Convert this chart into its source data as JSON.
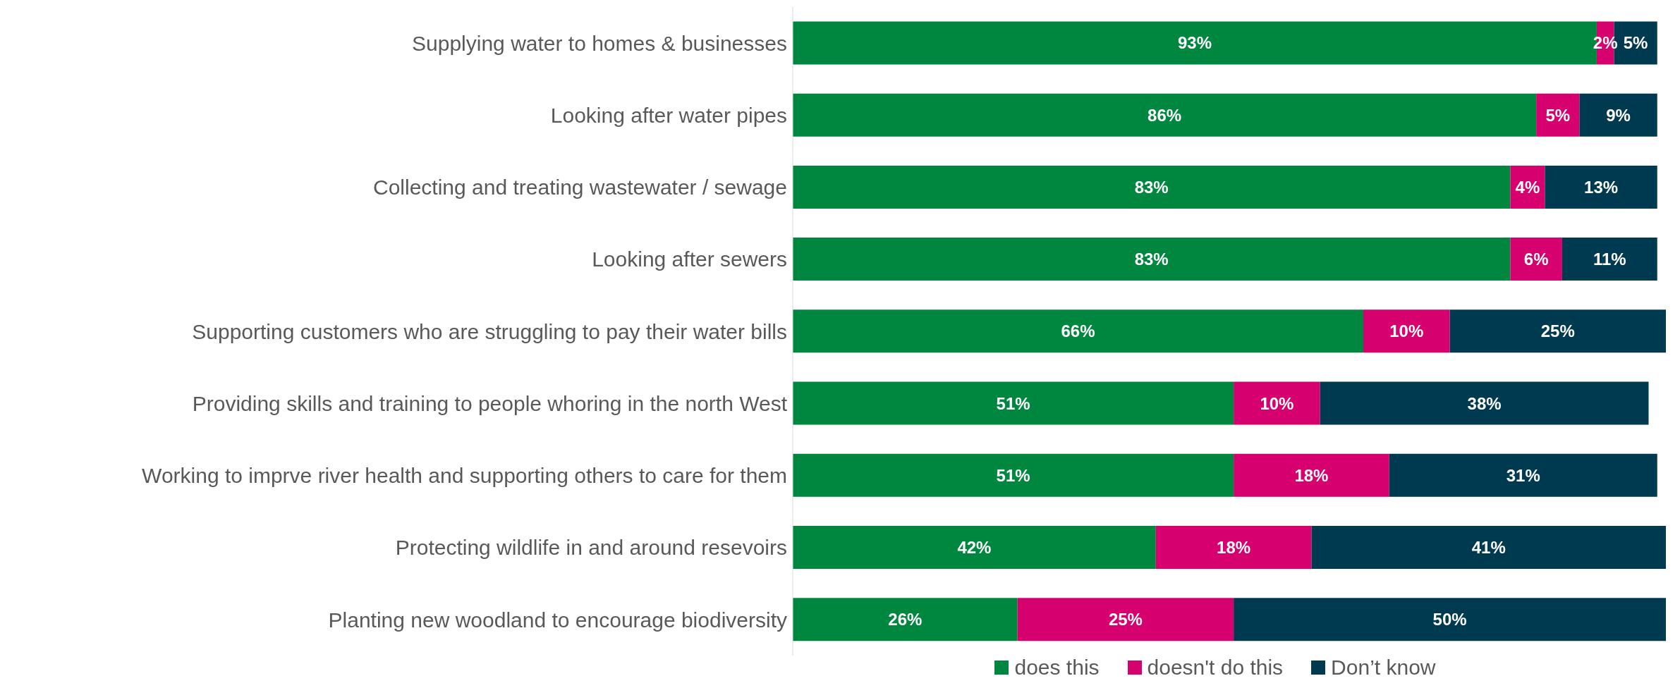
{
  "chart_data": {
    "type": "bar",
    "orientation": "horizontal",
    "stacked": true,
    "legend": "bottom",
    "categories": [
      "Supplying water to homes & businesses",
      "Looking after water pipes",
      "Collecting and treating wastewater / sewage",
      "Looking after sewers",
      "Supporting customers who are struggling to pay their water bills",
      "Providing skills and training to people whoring in the north West",
      "Working to imprve river health and supporting others to care for them",
      "Protecting wildlife in and around resevoirs",
      "Planting new woodland to encourage biodiversity"
    ],
    "series": [
      {
        "name": "does this",
        "color": "#00873f",
        "values": [
          93,
          86,
          83,
          83,
          66,
          51,
          51,
          42,
          26
        ],
        "value_labels": [
          "93%",
          "86%",
          "83%",
          "83%",
          "66%",
          "51%",
          "51%",
          "42%",
          "26%"
        ]
      },
      {
        "name": "doesn't do this",
        "color": "#d6006f",
        "values": [
          2,
          5,
          4,
          6,
          10,
          10,
          18,
          18,
          25
        ],
        "value_labels": [
          "2%",
          "5%",
          "4%",
          "6%",
          "10%",
          "10%",
          "18%",
          "18%",
          "25%"
        ]
      },
      {
        "name": "Don’t know",
        "color": "#003a50",
        "values": [
          5,
          9,
          13,
          11,
          25,
          38,
          31,
          41,
          50
        ],
        "value_labels": [
          "5%",
          "9%",
          "13%",
          "11%",
          "25%",
          "38%",
          "31%",
          "41%",
          "50%"
        ]
      }
    ]
  }
}
